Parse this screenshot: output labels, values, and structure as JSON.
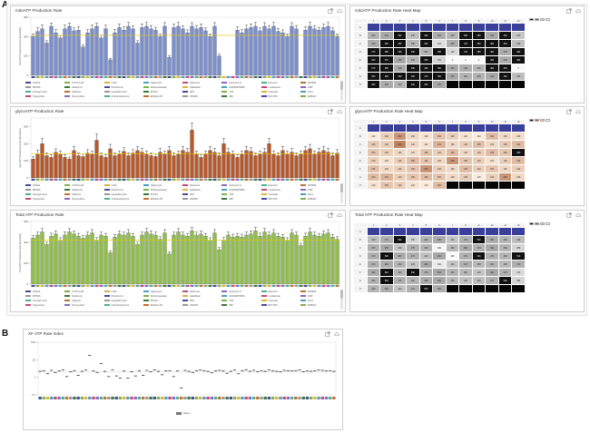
{
  "section_labels": {
    "a": "A",
    "b": "B"
  },
  "colors": {
    "mito_bar": "#7b8fcf",
    "glyco_bar": "#b8582a",
    "total_bar": "#8fbf4a",
    "baseline": "#e5c300",
    "dot": "#333333",
    "header_blue": "#3a3f9a"
  },
  "icons": [
    "export-icon",
    "cloud-icon"
  ],
  "panels": {
    "mito_chart": {
      "title": "mitoATP Production Rate"
    },
    "mito_heatmap": {
      "title": "mitoATP Production Rate Heat Map"
    },
    "glyco_chart": {
      "title": "glycoATP Production Rate"
    },
    "glyco_heatmap": {
      "title": "glycoATP Production Rate Heat Map"
    },
    "total_chart": {
      "title": "Total ATP Production Rate"
    },
    "total_heatmap": {
      "title": "Total ATP Production Rate Heat Map"
    },
    "index_chart": {
      "title": "XF ATP Rate Index",
      "legend_label": "Mean"
    }
  },
  "heatmap_rows": [
    "A",
    "B",
    "C",
    "D",
    "E",
    "F",
    "G",
    "H"
  ],
  "heatmap_cols": [
    "1",
    "2",
    "3",
    "4",
    "5",
    "6",
    "7",
    "8",
    "9",
    "10",
    "11",
    "12"
  ],
  "legend_entries": [
    [
      "Vehicle",
      "FCCP 1uM",
      "2-DG",
      "Oligomycin",
      "Rotenone",
      "Antimycin A",
      "Etomoxir",
      "UK5099"
    ],
    [
      "BPTES",
      "Metformin",
      "Phenformin",
      "Dichloroacetate",
      "Galloflavin",
      "GSK2837808A",
      "Lonidamine",
      "3-BP"
    ],
    [
      "Koningic acid",
      "Shikonin",
      "Heptelidic acid",
      "PFK15",
      "3PO",
      "YZ9",
      "Oxamate",
      "FX11"
    ],
    [
      "Tigecycline",
      "Doxycycline",
      "Chloramphenicol",
      "Ethidium Br",
      "CB-839",
      "968",
      "BAY-876",
      "WZB117"
    ]
  ],
  "chart_data": [
    {
      "id": "mito",
      "type": "bar",
      "title": "mitoATP Production Rate",
      "ylabel": "mitoATP Production Rate (pmol/min)",
      "ylim": [
        0,
        450
      ],
      "yticks": [
        0,
        150,
        300,
        450
      ],
      "baseline": 310,
      "values": [
        300,
        340,
        360,
        250,
        380,
        330,
        290,
        360,
        380,
        345,
        350,
        220,
        330,
        360,
        380,
        290,
        360,
        120,
        330,
        370,
        350,
        380,
        360,
        250,
        370,
        380,
        360,
        350,
        300,
        380,
        140,
        370,
        380,
        360,
        330,
        380,
        360,
        370,
        345,
        300,
        380,
        150,
        0,
        0,
        0,
        350,
        330,
        360,
        370,
        380,
        345,
        380,
        360,
        380,
        340,
        330,
        300,
        380,
        360,
        0,
        350,
        380,
        360,
        350,
        370,
        380,
        345,
        300
      ],
      "errors": [
        22,
        28,
        30,
        18,
        25,
        24,
        20,
        30,
        26,
        22,
        28,
        16,
        25,
        30,
        24,
        20,
        28,
        12,
        25,
        28,
        26,
        30,
        24,
        18,
        28,
        30,
        26,
        22,
        20,
        28,
        14,
        26,
        30,
        24,
        22,
        28,
        26,
        28,
        22,
        20,
        28,
        14,
        0,
        0,
        0,
        26,
        24,
        28,
        28,
        30,
        22,
        28,
        26,
        30,
        24,
        22,
        20,
        28,
        26,
        0,
        26,
        30,
        24,
        22,
        28,
        30,
        22,
        20
      ]
    },
    {
      "id": "glyco",
      "type": "bar",
      "title": "glycoATP Production Rate",
      "ylabel": "glycoATP Production Rate (pmol/min)",
      "ylim": [
        0,
        350
      ],
      "yticks": [
        0,
        100,
        200,
        300
      ],
      "baseline": 140,
      "values": [
        110,
        140,
        200,
        130,
        120,
        150,
        140,
        120,
        110,
        160,
        130,
        125,
        145,
        140,
        220,
        130,
        120,
        170,
        130,
        140,
        155,
        130,
        145,
        160,
        150,
        140,
        130,
        125,
        150,
        140,
        160,
        130,
        140,
        160,
        150,
        280,
        140,
        120,
        140,
        160,
        150,
        130,
        200,
        150,
        140,
        120,
        140,
        160,
        155,
        130,
        140,
        150,
        200,
        140,
        130,
        160,
        140,
        150,
        130,
        140,
        160,
        170,
        140,
        150,
        160,
        150,
        130,
        145
      ],
      "errors": [
        14,
        22,
        30,
        16,
        14,
        20,
        18,
        16,
        12,
        24,
        16,
        14,
        20,
        18,
        36,
        16,
        14,
        26,
        16,
        18,
        22,
        16,
        20,
        24,
        22,
        18,
        16,
        14,
        22,
        18,
        24,
        16,
        18,
        24,
        22,
        40,
        18,
        14,
        18,
        24,
        22,
        16,
        30,
        22,
        18,
        14,
        18,
        24,
        22,
        16,
        18,
        22,
        30,
        18,
        16,
        24,
        18,
        22,
        16,
        18,
        24,
        26,
        18,
        22,
        24,
        22,
        16,
        20
      ]
    },
    {
      "id": "total",
      "type": "bar",
      "title": "Total ATP Production Rate",
      "ylabel": "Total ATP Production Rate (pmol/min)",
      "ylim": [
        0,
        600
      ],
      "yticks": [
        0,
        200,
        400,
        600
      ],
      "baseline": 420,
      "values": [
        440,
        470,
        500,
        380,
        460,
        480,
        420,
        470,
        500,
        480,
        460,
        440,
        470,
        490,
        420,
        470,
        460,
        300,
        450,
        480,
        470,
        490,
        460,
        380,
        470,
        500,
        480,
        470,
        430,
        490,
        290,
        470,
        500,
        470,
        460,
        510,
        470,
        480,
        460,
        420,
        490,
        330,
        420,
        470,
        450,
        460,
        450,
        470,
        480,
        510,
        460,
        500,
        470,
        490,
        460,
        450,
        420,
        490,
        470,
        370,
        460,
        500,
        470,
        460,
        480,
        490,
        450,
        430
      ],
      "errors": [
        24,
        30,
        32,
        22,
        28,
        30,
        24,
        30,
        32,
        28,
        26,
        24,
        30,
        32,
        26,
        28,
        26,
        18,
        26,
        30,
        28,
        32,
        26,
        22,
        30,
        32,
        30,
        28,
        24,
        32,
        18,
        28,
        32,
        28,
        26,
        34,
        28,
        30,
        26,
        24,
        32,
        20,
        26,
        30,
        28,
        26,
        28,
        30,
        30,
        34,
        28,
        32,
        28,
        32,
        26,
        26,
        24,
        32,
        28,
        22,
        28,
        32,
        28,
        26,
        30,
        32,
        26,
        24
      ]
    },
    {
      "id": "index",
      "type": "scatter",
      "title": "XF ATP Rate Index",
      "yscale": "log",
      "ylim": [
        0.1,
        100
      ],
      "yticks": [
        0.1,
        1,
        10,
        100
      ],
      "baseline": 2,
      "values": [
        2.2,
        2.4,
        1.6,
        2.5,
        1.9,
        2.3,
        2.6,
        1.1,
        2.1,
        2.4,
        1.3,
        2.2,
        2.6,
        18,
        2.3,
        1.9,
        6,
        2.2,
        1.1,
        2.7,
        1.2,
        0.9,
        2.3,
        0.9,
        2.1,
        1.2,
        2.4,
        1.3,
        2.5,
        2.1,
        2.6,
        2.2,
        1.4,
        2.3,
        2.4,
        1.1,
        2.3,
        0.25,
        2.5,
        2.2,
        1.9,
        2.4,
        2.6,
        2.4,
        2.2,
        1.8,
        2.3,
        2.5,
        2.3,
        1.7,
        2.2,
        2.6,
        1.6,
        2.4,
        2.7,
        2.2,
        2.5,
        2.1,
        2.4,
        2.2,
        2.6,
        2.3,
        2.2,
        2.1,
        2.5,
        2.4,
        2.3,
        2.4,
        2.6,
        2.1,
        2.3,
        2.2,
        2.4,
        2.6,
        2.5,
        2.3,
        2.4,
        2.2
      ]
    }
  ]
}
